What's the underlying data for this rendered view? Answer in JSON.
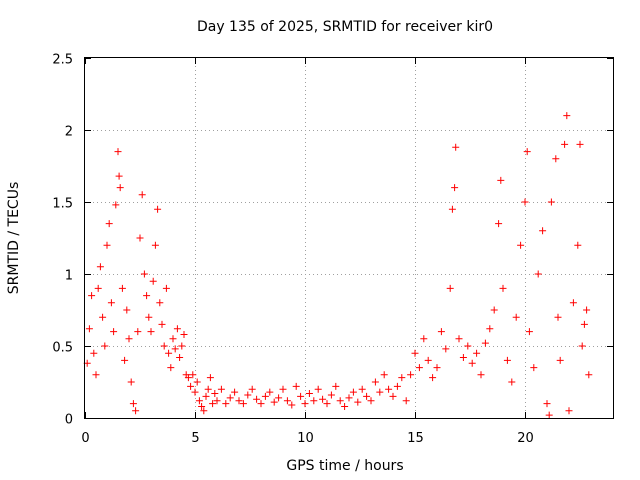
{
  "chart_data": {
    "type": "scatter",
    "title": "Day 135 of 2025, SRMTID for receiver kir0",
    "xlabel": "GPS time / hours",
    "ylabel": "SRMTID / TECUs",
    "xlim": [
      0,
      24
    ],
    "ylim": [
      0,
      2.5
    ],
    "xticks": [
      0,
      5,
      10,
      15,
      20
    ],
    "xtick_labels": [
      "0",
      "5",
      "10",
      "15",
      "20"
    ],
    "yticks": [
      0,
      0.5,
      1,
      1.5,
      2,
      2.5
    ],
    "ytick_labels": [
      "0",
      "0.5",
      "1",
      "1.5",
      "2",
      "2.5"
    ],
    "grid": true,
    "marker": "+",
    "color": "#ff0000",
    "series": [
      {
        "name": "SRMTID",
        "points": [
          [
            0.1,
            0.38
          ],
          [
            0.2,
            0.62
          ],
          [
            0.3,
            0.85
          ],
          [
            0.4,
            0.45
          ],
          [
            0.5,
            0.3
          ],
          [
            0.6,
            0.9
          ],
          [
            0.7,
            1.05
          ],
          [
            0.8,
            0.7
          ],
          [
            0.9,
            0.5
          ],
          [
            1.0,
            1.2
          ],
          [
            1.1,
            1.35
          ],
          [
            1.2,
            0.8
          ],
          [
            1.3,
            0.6
          ],
          [
            1.4,
            1.48
          ],
          [
            1.5,
            1.85
          ],
          [
            1.55,
            1.68
          ],
          [
            1.6,
            1.6
          ],
          [
            1.7,
            0.9
          ],
          [
            1.8,
            0.4
          ],
          [
            1.9,
            0.75
          ],
          [
            2.0,
            0.55
          ],
          [
            2.1,
            0.25
          ],
          [
            2.2,
            0.1
          ],
          [
            2.3,
            0.05
          ],
          [
            2.4,
            0.6
          ],
          [
            2.5,
            1.25
          ],
          [
            2.6,
            1.55
          ],
          [
            2.7,
            1.0
          ],
          [
            2.8,
            0.85
          ],
          [
            2.9,
            0.7
          ],
          [
            3.0,
            0.6
          ],
          [
            3.1,
            0.95
          ],
          [
            3.2,
            1.2
          ],
          [
            3.3,
            1.45
          ],
          [
            3.4,
            0.8
          ],
          [
            3.5,
            0.65
          ],
          [
            3.6,
            0.5
          ],
          [
            3.7,
            0.9
          ],
          [
            3.8,
            0.45
          ],
          [
            3.9,
            0.35
          ],
          [
            4.0,
            0.55
          ],
          [
            4.1,
            0.48
          ],
          [
            4.2,
            0.62
          ],
          [
            4.3,
            0.42
          ],
          [
            4.4,
            0.5
          ],
          [
            4.5,
            0.58
          ],
          [
            4.6,
            0.3
          ],
          [
            4.7,
            0.28
          ],
          [
            4.8,
            0.22
          ],
          [
            4.9,
            0.3
          ],
          [
            5.0,
            0.18
          ],
          [
            5.1,
            0.25
          ],
          [
            5.2,
            0.12
          ],
          [
            5.3,
            0.08
          ],
          [
            5.4,
            0.05
          ],
          [
            5.5,
            0.15
          ],
          [
            5.6,
            0.2
          ],
          [
            5.7,
            0.28
          ],
          [
            5.8,
            0.1
          ],
          [
            5.9,
            0.17
          ],
          [
            6.0,
            0.12
          ],
          [
            6.2,
            0.2
          ],
          [
            6.4,
            0.1
          ],
          [
            6.6,
            0.14
          ],
          [
            6.8,
            0.18
          ],
          [
            7.0,
            0.12
          ],
          [
            7.2,
            0.1
          ],
          [
            7.4,
            0.16
          ],
          [
            7.6,
            0.2
          ],
          [
            7.8,
            0.13
          ],
          [
            8.0,
            0.1
          ],
          [
            8.2,
            0.15
          ],
          [
            8.4,
            0.18
          ],
          [
            8.6,
            0.11
          ],
          [
            8.8,
            0.14
          ],
          [
            9.0,
            0.2
          ],
          [
            9.2,
            0.12
          ],
          [
            9.4,
            0.09
          ],
          [
            9.6,
            0.22
          ],
          [
            9.8,
            0.15
          ],
          [
            10.0,
            0.1
          ],
          [
            10.2,
            0.17
          ],
          [
            10.4,
            0.12
          ],
          [
            10.6,
            0.2
          ],
          [
            10.8,
            0.13
          ],
          [
            11.0,
            0.1
          ],
          [
            11.2,
            0.16
          ],
          [
            11.4,
            0.22
          ],
          [
            11.6,
            0.12
          ],
          [
            11.8,
            0.08
          ],
          [
            12.0,
            0.14
          ],
          [
            12.2,
            0.18
          ],
          [
            12.4,
            0.11
          ],
          [
            12.6,
            0.2
          ],
          [
            12.8,
            0.15
          ],
          [
            13.0,
            0.12
          ],
          [
            13.2,
            0.25
          ],
          [
            13.4,
            0.18
          ],
          [
            13.6,
            0.3
          ],
          [
            13.8,
            0.2
          ],
          [
            14.0,
            0.15
          ],
          [
            14.2,
            0.22
          ],
          [
            14.4,
            0.28
          ],
          [
            14.6,
            0.12
          ],
          [
            14.8,
            0.3
          ],
          [
            15.0,
            0.45
          ],
          [
            15.2,
            0.35
          ],
          [
            15.4,
            0.55
          ],
          [
            15.6,
            0.4
          ],
          [
            15.8,
            0.28
          ],
          [
            16.0,
            0.35
          ],
          [
            16.2,
            0.6
          ],
          [
            16.4,
            0.48
          ],
          [
            16.6,
            0.9
          ],
          [
            16.7,
            1.45
          ],
          [
            16.8,
            1.6
          ],
          [
            16.85,
            1.88
          ],
          [
            17.0,
            0.55
          ],
          [
            17.2,
            0.42
          ],
          [
            17.4,
            0.5
          ],
          [
            17.6,
            0.38
          ],
          [
            17.8,
            0.45
          ],
          [
            18.0,
            0.3
          ],
          [
            18.2,
            0.52
          ],
          [
            18.4,
            0.62
          ],
          [
            18.6,
            0.75
          ],
          [
            18.8,
            1.35
          ],
          [
            18.9,
            1.65
          ],
          [
            19.0,
            0.9
          ],
          [
            19.2,
            0.4
          ],
          [
            19.4,
            0.25
          ],
          [
            19.6,
            0.7
          ],
          [
            19.8,
            1.2
          ],
          [
            20.0,
            1.5
          ],
          [
            20.1,
            1.85
          ],
          [
            20.2,
            0.6
          ],
          [
            20.4,
            0.35
          ],
          [
            20.6,
            1.0
          ],
          [
            20.8,
            1.3
          ],
          [
            21.0,
            0.1
          ],
          [
            21.1,
            0.02
          ],
          [
            21.2,
            1.5
          ],
          [
            21.4,
            1.8
          ],
          [
            21.5,
            0.7
          ],
          [
            21.6,
            0.4
          ],
          [
            21.8,
            1.9
          ],
          [
            21.9,
            2.1
          ],
          [
            22.0,
            0.05
          ],
          [
            22.2,
            0.8
          ],
          [
            22.4,
            1.2
          ],
          [
            22.5,
            1.9
          ],
          [
            22.6,
            0.5
          ],
          [
            22.7,
            0.65
          ],
          [
            22.8,
            0.75
          ],
          [
            22.9,
            0.3
          ]
        ]
      }
    ]
  }
}
